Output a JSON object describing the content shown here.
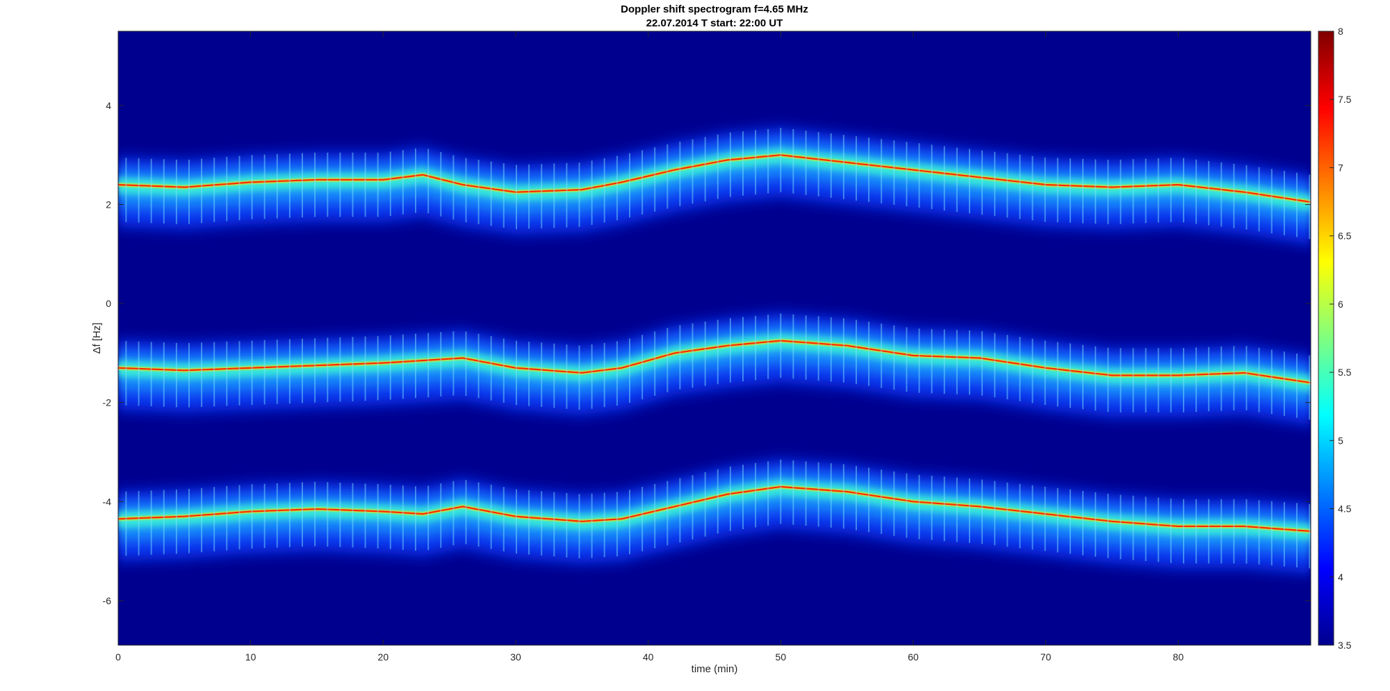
{
  "chart_data": {
    "type": "heatmap",
    "title": "Doppler shift spectrogram f=4.65 MHz",
    "subtitle": "22.07.2014   T start: 22:00 UT",
    "xlabel": "time (min)",
    "ylabel": "Δf [Hz]",
    "xlim": [
      0,
      90
    ],
    "ylim": [
      -6.9,
      5.5
    ],
    "x_ticks": [
      0,
      10,
      20,
      30,
      40,
      50,
      60,
      70,
      80
    ],
    "y_ticks": [
      4,
      2,
      0,
      -2,
      -4,
      -6
    ],
    "colorbar": {
      "colormap": "jet",
      "range": [
        3.5,
        8
      ],
      "ticks": [
        8,
        7.5,
        7,
        6.5,
        6,
        5.5,
        5,
        4.5,
        4,
        3.5
      ]
    },
    "series": [
      {
        "x": [
          0,
          5,
          10,
          15,
          20,
          23,
          26,
          30,
          35,
          38,
          42,
          46,
          50,
          55,
          60,
          65,
          70,
          75,
          80,
          85,
          90
        ],
        "y": [
          2.4,
          2.35,
          2.45,
          2.5,
          2.5,
          2.6,
          2.4,
          2.25,
          2.3,
          2.45,
          2.7,
          2.9,
          3.0,
          2.85,
          2.7,
          2.55,
          2.4,
          2.35,
          2.4,
          2.25,
          2.05
        ]
      },
      {
        "x": [
          0,
          5,
          10,
          15,
          20,
          23,
          26,
          30,
          35,
          38,
          42,
          46,
          50,
          55,
          60,
          65,
          70,
          75,
          80,
          85,
          90
        ],
        "y": [
          -1.3,
          -1.35,
          -1.3,
          -1.25,
          -1.2,
          -1.15,
          -1.1,
          -1.3,
          -1.4,
          -1.3,
          -1.0,
          -0.85,
          -0.75,
          -0.85,
          -1.05,
          -1.1,
          -1.3,
          -1.45,
          -1.45,
          -1.4,
          -1.6
        ]
      },
      {
        "x": [
          0,
          5,
          10,
          15,
          20,
          23,
          26,
          30,
          35,
          38,
          42,
          46,
          50,
          55,
          60,
          65,
          70,
          75,
          80,
          85,
          90
        ],
        "y": [
          -4.35,
          -4.3,
          -4.2,
          -4.15,
          -4.2,
          -4.25,
          -4.1,
          -4.3,
          -4.4,
          -4.35,
          -4.1,
          -3.85,
          -3.7,
          -3.8,
          -4.0,
          -4.1,
          -4.25,
          -4.4,
          -4.5,
          -4.5,
          -4.6
        ]
      }
    ]
  }
}
